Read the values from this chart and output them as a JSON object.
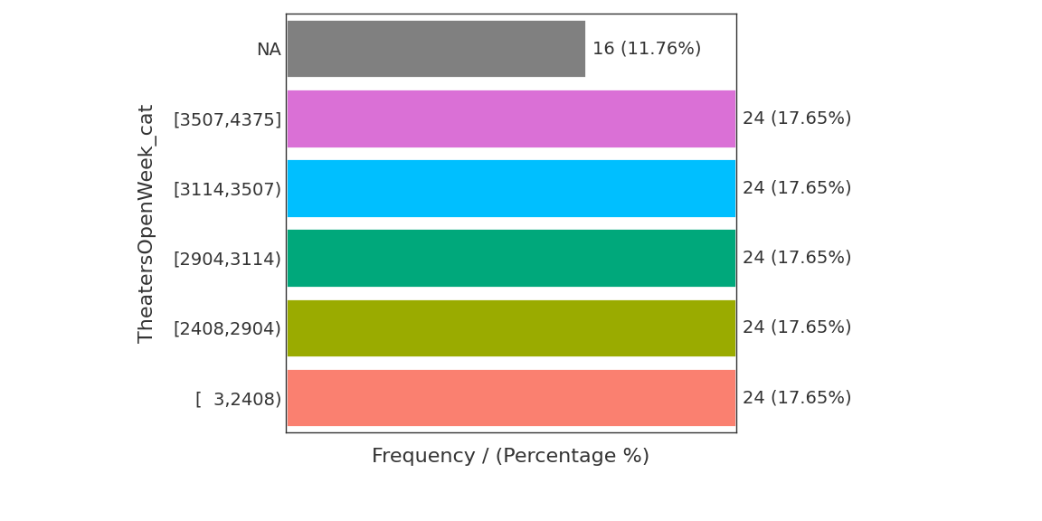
{
  "categories": [
    "NA",
    "[3507,4375]",
    "[3114,3507)",
    "[2904,3114)",
    "[2408,2904)",
    "[  3,2408)"
  ],
  "values": [
    16,
    24,
    24,
    24,
    24,
    24
  ],
  "percentages": [
    11.76,
    17.65,
    17.65,
    17.65,
    17.65,
    17.65
  ],
  "colors": [
    "#808080",
    "#da70d6",
    "#00bfff",
    "#00a87b",
    "#9aab00",
    "#fa8070"
  ],
  "xlabel": "Frequency / (Percentage %)",
  "ylabel": "TheatersOpenWeek_cat",
  "background_color": "#ffffff",
  "xlim_max": 24,
  "label_fontsize": 16,
  "tick_fontsize": 14,
  "bar_height": 0.85,
  "annotation_fontsize": 14
}
